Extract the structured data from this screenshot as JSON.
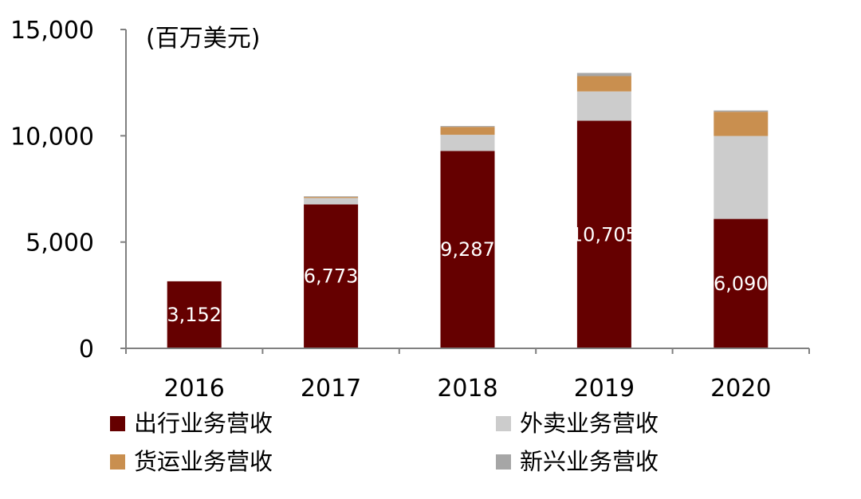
{
  "chart_data": {
    "type": "bar",
    "stacked": true,
    "unit_label": "(百万美元)",
    "categories": [
      "2016",
      "2017",
      "2018",
      "2019",
      "2020"
    ],
    "ylim": [
      0,
      15000
    ],
    "yticks": [
      0,
      5000,
      10000,
      15000
    ],
    "ytick_labels": [
      "0",
      "5,000",
      "10,000",
      "15,000"
    ],
    "grid": false,
    "legend_position": "bottom",
    "series": [
      {
        "name": "出行业务营收",
        "color": "#650000",
        "values": [
          3152,
          6773,
          9287,
          10705,
          6090
        ],
        "data_labels": [
          "3,152",
          "6,773",
          "9,287",
          "10,705",
          "6,090"
        ]
      },
      {
        "name": "外卖业务营收",
        "color": "#cccccc",
        "values": [
          0,
          300,
          760,
          1380,
          3900
        ]
      },
      {
        "name": "货运业务营收",
        "color": "#c98f4f",
        "values": [
          0,
          50,
          370,
          720,
          1140
        ]
      },
      {
        "name": "新兴业务营收",
        "color": "#a6a6a6",
        "values": [
          0,
          30,
          40,
          150,
          60
        ]
      }
    ]
  }
}
